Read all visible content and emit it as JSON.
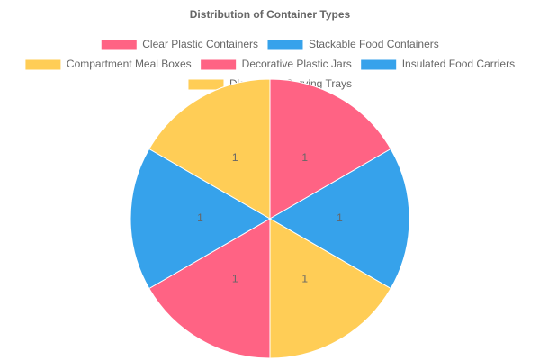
{
  "chart_data": {
    "type": "pie",
    "title": "Distribution of Container Types",
    "categories": [
      "Clear Plastic Containers",
      "Stackable Food Containers",
      "Compartment Meal Boxes",
      "Decorative Plastic Jars",
      "Insulated Food Carriers",
      "Disposable Serving Trays"
    ],
    "values": [
      1,
      1,
      1,
      1,
      1,
      1
    ],
    "colors": [
      "#ff6384",
      "#36a2eb",
      "#ffcd56",
      "#ff6384",
      "#36a2eb",
      "#ffcd56"
    ],
    "legend": "top"
  }
}
